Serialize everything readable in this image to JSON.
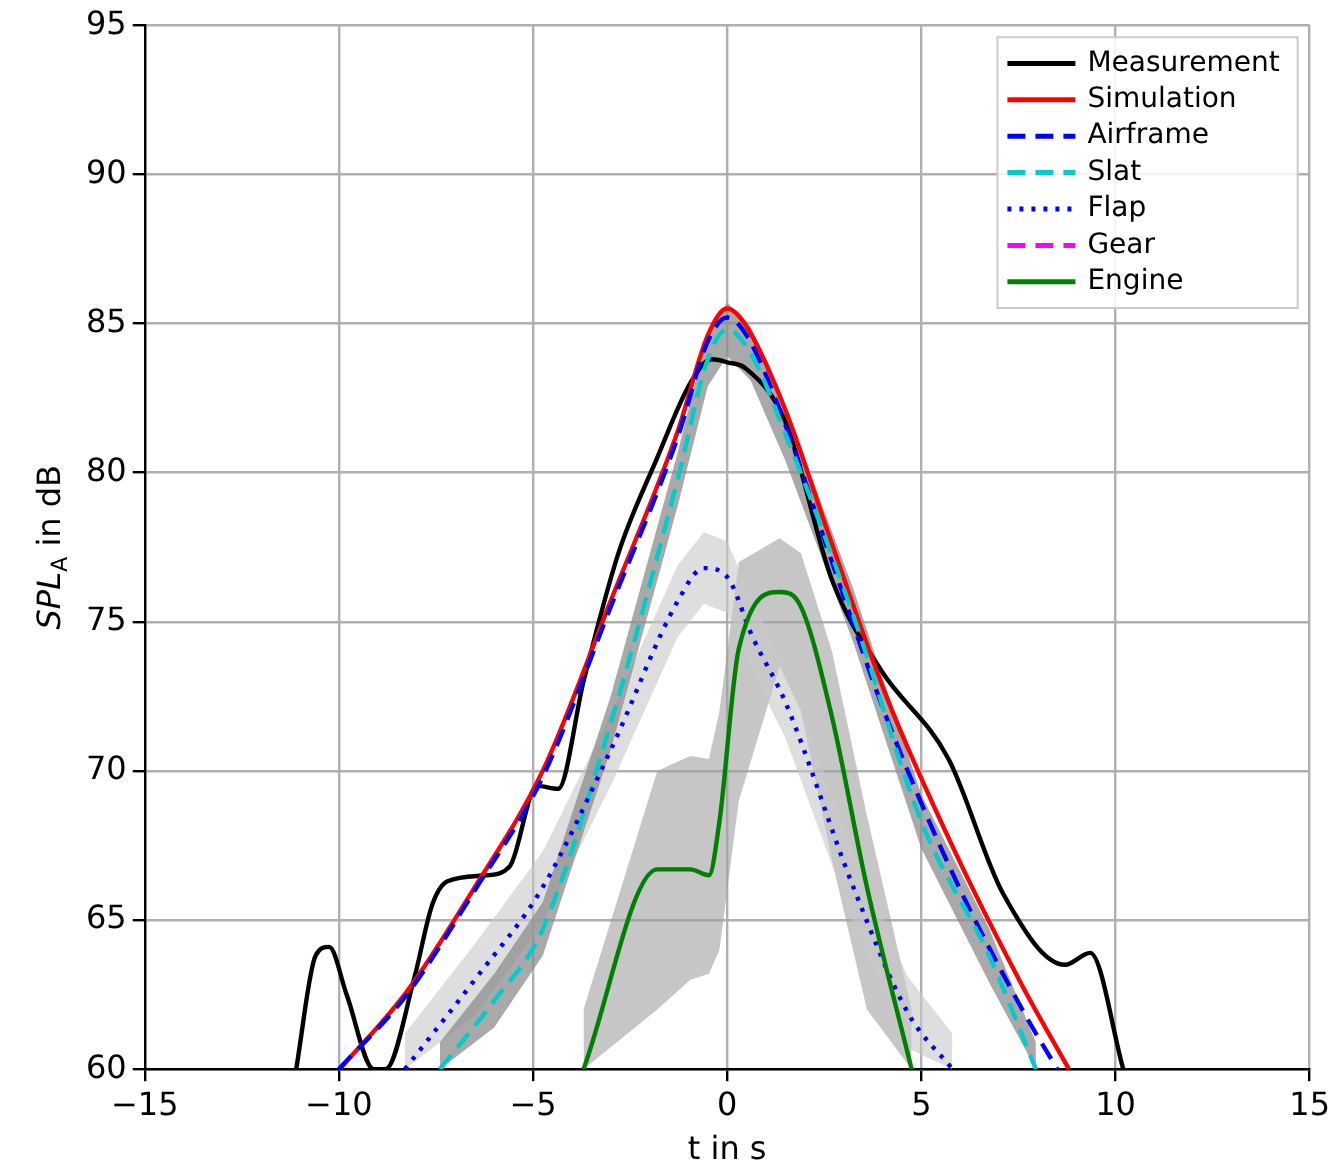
{
  "chart_data": {
    "type": "line",
    "xlabel": "t in s",
    "ylabel": "SPL$_{A}$ in dB",
    "xlim": [
      -15,
      15
    ],
    "xticks": [
      -15,
      -10,
      -5,
      0,
      5,
      10,
      15
    ],
    "ylim": [
      60,
      95
    ],
    "yticks": [
      60,
      65,
      70,
      75,
      80,
      85,
      90,
      95
    ],
    "grid": true,
    "legend": "top right",
    "marker": "none",
    "series": [
      {
        "name": "Measurement",
        "color": "#000000",
        "line_style": "solid",
        "x": [
          -11.1,
          -10.6,
          -10.25,
          -9.8,
          -9.1,
          -8.8,
          -8.05,
          -7.6,
          -7.2,
          -6.2,
          -5.6,
          -4.9,
          -4.35,
          -3.7,
          -2.8,
          -1.8,
          -0.95,
          -0.4,
          0,
          0.47,
          1.5,
          2.7,
          3.95,
          5.7,
          7.1,
          8.7,
          9.35,
          10.2
        ],
        "values": [
          60,
          63.8,
          64.1,
          62.5,
          60,
          60,
          63.1,
          65.5,
          66.3,
          66.5,
          66.8,
          69.5,
          69.4,
          73,
          77.3,
          80.5,
          83,
          83.8,
          83.7,
          83.5,
          81.7,
          76.4,
          73.4,
          70.4,
          65.9,
          63.5,
          63.9,
          60
        ]
      },
      {
        "name": "Simulation",
        "color": "#ff0000",
        "line_style": "solid",
        "x": [
          -9.98,
          -8.25,
          -6.5,
          -4.75,
          -3,
          -1.27,
          -0.5,
          0,
          0.5,
          1.5,
          2.7,
          4.1,
          5.9,
          7.6,
          8.8
        ],
        "values": [
          60,
          62.6,
          66.1,
          70,
          75.7,
          81.4,
          84.6,
          85.5,
          84.9,
          82.1,
          77.6,
          72.5,
          67.2,
          62.8,
          60
        ]
      },
      {
        "name": "Airframe",
        "color": "#0000ff",
        "line_style": "dashed",
        "x": [
          -10,
          -8.25,
          -6.5,
          -4.75,
          -3,
          -1.27,
          -0.5,
          0,
          0.5,
          1.5,
          2.7,
          4.1,
          5.9,
          7.6,
          8.5
        ],
        "values": [
          60,
          62.5,
          66,
          69.8,
          75.5,
          81.2,
          84.4,
          85.2,
          84.6,
          81.6,
          77,
          71.8,
          66.3,
          62,
          60
        ]
      },
      {
        "name": "Slat",
        "color": "#00cccc",
        "line_style": "dashed",
        "x": [
          -7.4,
          -6,
          -4.75,
          -3,
          -1.27,
          -0.5,
          0,
          0.6,
          1.5,
          3.25,
          5,
          6.75,
          7.95
        ],
        "values": [
          60,
          62.3,
          64.7,
          71.6,
          79.8,
          83.8,
          84.8,
          84,
          81.3,
          75.2,
          68.3,
          63.8,
          60
        ],
        "lower": [
          60,
          61.4,
          63.8,
          70.7,
          78.9,
          82.9,
          83.9,
          83.1,
          80.4,
          74.3,
          67.4,
          62.9,
          60
        ],
        "upper": [
          60.9,
          63.2,
          65.6,
          72.5,
          80.7,
          84.7,
          85.7,
          84.9,
          82.2,
          76.1,
          69.2,
          64.7,
          60.9
        ]
      },
      {
        "name": "Flap",
        "color": "#0000ff",
        "line_style": "dotted",
        "x": [
          -8.3,
          -6.5,
          -4.75,
          -3,
          -1.27,
          -0.6,
          0,
          0.65,
          1.5,
          3.25,
          4.65,
          5.8
        ],
        "values": [
          60,
          63,
          66.1,
          70.7,
          75.7,
          76.8,
          76.5,
          74.5,
          72.3,
          66.1,
          61.9,
          60
        ],
        "lower": [
          60,
          61.8,
          64.9,
          69.5,
          74.5,
          75.6,
          75.3,
          73.3,
          71.1,
          64.9,
          60.7,
          60
        ],
        "upper": [
          61.2,
          64.2,
          67.3,
          71.9,
          76.9,
          78,
          77.7,
          75.7,
          73.5,
          67.3,
          63.1,
          61.2
        ]
      },
      {
        "name": "Gear",
        "color": "#ff00ff",
        "line_style": "dashed"
      },
      {
        "name": "Engine",
        "color": "#008000",
        "line_style": "solid",
        "x": [
          -3.7,
          -1.8,
          -0.95,
          -0.47,
          -0.2,
          0.3,
          1.35,
          1.9,
          2.7,
          3.6,
          4.75
        ],
        "values": [
          60,
          66.7,
          66.7,
          66.5,
          68.3,
          74.1,
          76,
          75.5,
          71.8,
          66.1,
          60
        ],
        "lower": [
          60,
          62,
          63,
          63.2,
          64,
          69,
          73.5,
          72,
          67,
          62,
          60
        ],
        "upper": [
          62,
          70,
          70.5,
          70.4,
          72,
          77,
          77.8,
          77.3,
          74,
          68.5,
          62
        ]
      }
    ]
  }
}
